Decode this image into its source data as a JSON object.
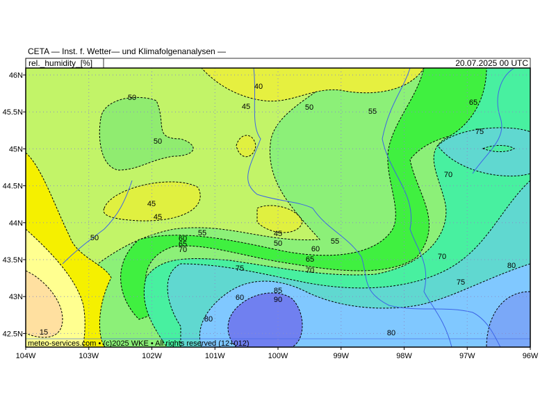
{
  "header": {
    "title": "CETA — Inst. f. Wetter— und Klimafolgenanalysen —",
    "variable": "rel._humidity_[%]",
    "valid_time": "20.07.2025 00 UTC"
  },
  "map": {
    "lat_labels": [
      "46N",
      "45.5N",
      "45N",
      "44.5N",
      "44N",
      "43.5N",
      "43N",
      "42.5N"
    ],
    "lon_labels": [
      "104W",
      "103W",
      "102W",
      "101W",
      "100W",
      "99W",
      "98W",
      "97W",
      "96W"
    ],
    "contour_labels": [
      50,
      50,
      40,
      45,
      50,
      55,
      65,
      75,
      70,
      45,
      45,
      50,
      55,
      60,
      65,
      70,
      45,
      50,
      60,
      55,
      65,
      70,
      75,
      70,
      80,
      75,
      60,
      85,
      90,
      80,
      80,
      15
    ],
    "credit": "meteo-services.com • (c)2025 WKE • All rights reserved (12+012)"
  }
}
